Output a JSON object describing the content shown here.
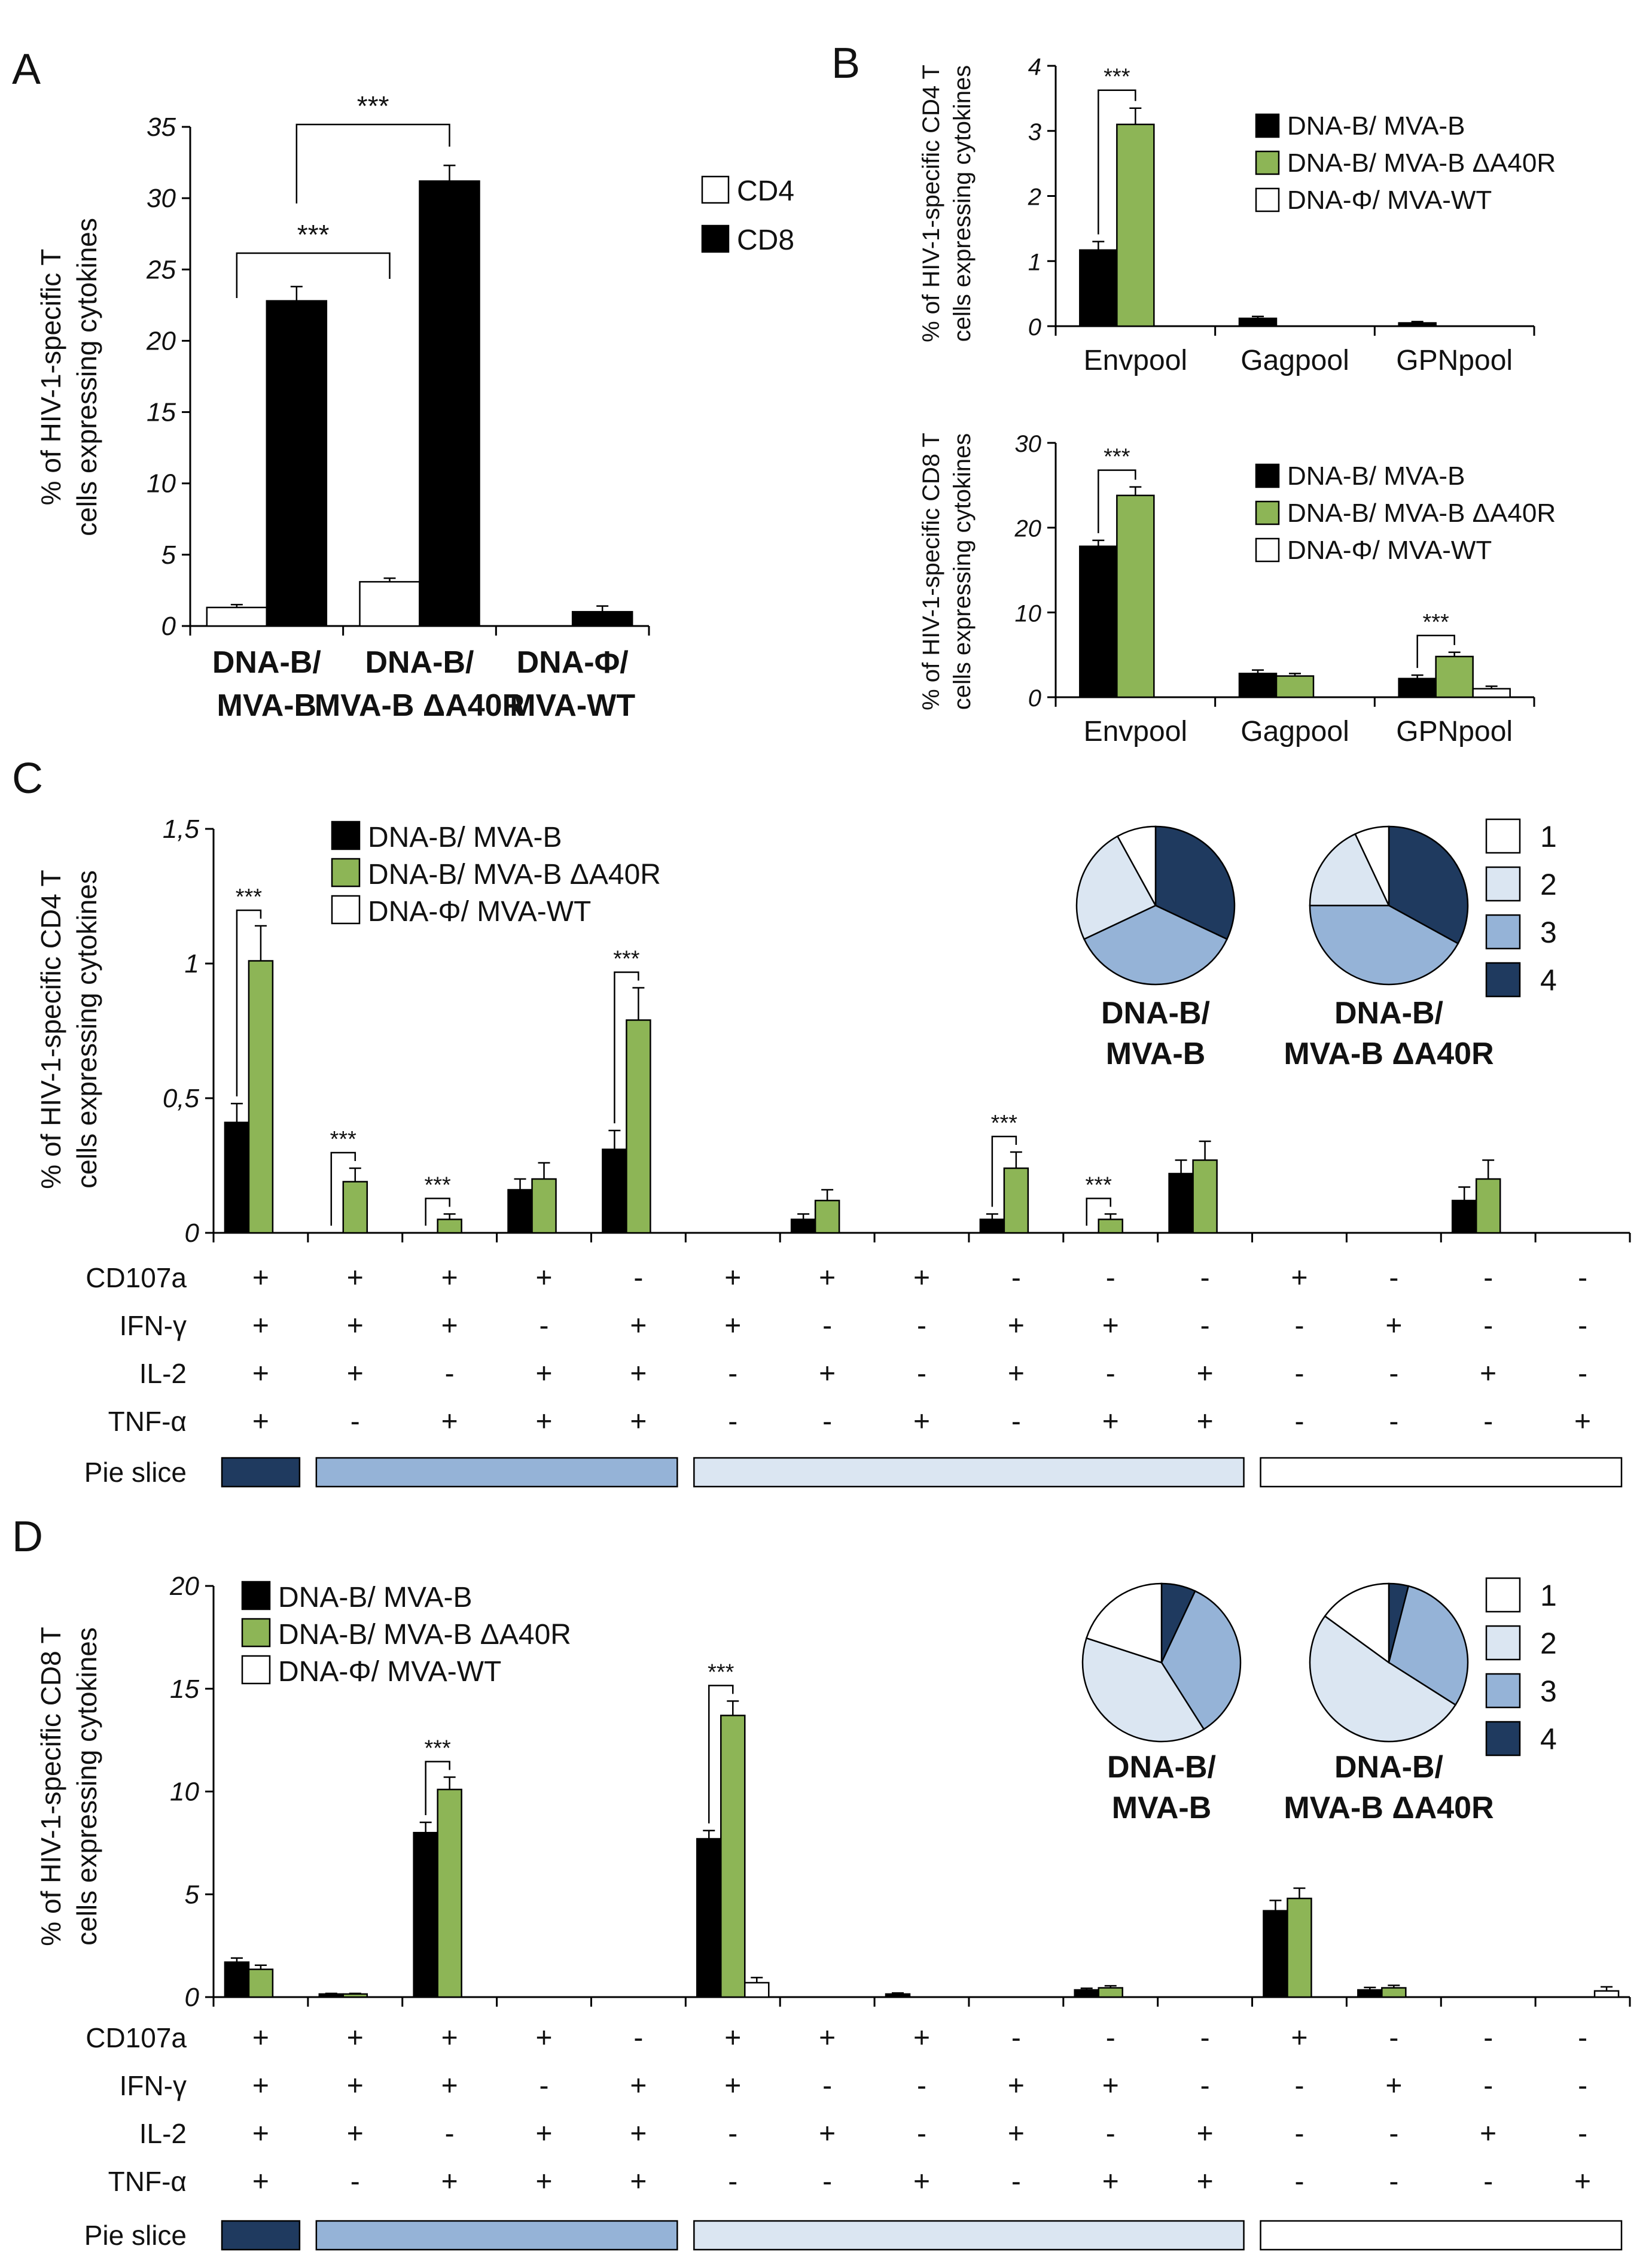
{
  "colors": {
    "black": "#000000",
    "green": "#8db556",
    "white": "#ffffff",
    "slice1": "#ffffff",
    "slice2": "#dbe6f2",
    "slice3": "#95b3d7",
    "slice4": "#1f3a5f"
  },
  "chart_data": [
    {
      "id": "A",
      "type": "bar",
      "panel_label": "A",
      "ylabel": [
        "% of HIV-1-specific T",
        "cells expressing cytokines"
      ],
      "ylim": [
        0,
        35
      ],
      "yticks": [
        "0",
        "5",
        "10",
        "15",
        "20",
        "25",
        "30",
        "35"
      ],
      "categories": [
        [
          "DNA-B/",
          "MVA-B"
        ],
        [
          "DNA-B/",
          "MVA-B ΔA40R"
        ],
        [
          "DNA-Φ/",
          "MVA-WT"
        ]
      ],
      "series": [
        {
          "name": "CD4",
          "color": "#ffffff",
          "values": [
            1.3,
            3.1,
            0
          ],
          "errors": [
            0.2,
            0.25,
            0
          ]
        },
        {
          "name": "CD8",
          "color": "#000000",
          "values": [
            22.8,
            31.2,
            1.0
          ],
          "errors": [
            1.0,
            1.1,
            0.4
          ]
        }
      ],
      "legend": [
        "CD4",
        "CD8"
      ],
      "significance": [
        {
          "label": "***",
          "from": [
            0,
            0
          ],
          "to": [
            1,
            0
          ]
        },
        {
          "label": "***",
          "from": [
            0,
            1
          ],
          "to": [
            1,
            1
          ]
        }
      ]
    },
    {
      "id": "B1",
      "type": "bar",
      "panel_label": "B",
      "ylabel": [
        "% of HIV-1-specific CD4 T",
        "cells expressing cytokines"
      ],
      "ylim": [
        0,
        4
      ],
      "yticks": [
        "0",
        "1",
        "2",
        "3",
        "4"
      ],
      "categories": [
        "Envpool",
        "Gagpool",
        "GPNpool"
      ],
      "series": [
        {
          "name": "DNA-B/ MVA-B",
          "color": "#000000",
          "values": [
            1.17,
            0.12,
            0.05
          ],
          "errors": [
            0.13,
            0.03,
            0.02
          ]
        },
        {
          "name": "DNA-B/ MVA-B ΔA40R",
          "color": "#8db556",
          "values": [
            3.1,
            0,
            0
          ],
          "errors": [
            0.25,
            0,
            0
          ]
        },
        {
          "name": "DNA-Φ/ MVA-WT",
          "color": "#ffffff",
          "values": [
            0,
            0,
            0
          ],
          "errors": [
            0,
            0,
            0
          ]
        }
      ],
      "legend": [
        "DNA-B/ MVA-B",
        "DNA-B/ MVA-B ΔA40R",
        "DNA-Φ/ MVA-WT"
      ],
      "significance": [
        {
          "label": "***",
          "cat": 0
        }
      ]
    },
    {
      "id": "B2",
      "type": "bar",
      "ylabel": [
        "% of HIV-1-specific CD8 T",
        "cells expressing cytokines"
      ],
      "ylim": [
        0,
        30
      ],
      "yticks": [
        "0",
        "10",
        "20",
        "30"
      ],
      "categories": [
        "Envpool",
        "Gagpool",
        "GPNpool"
      ],
      "series": [
        {
          "name": "DNA-B/ MVA-B",
          "color": "#000000",
          "values": [
            17.8,
            2.8,
            2.2
          ],
          "errors": [
            0.7,
            0.4,
            0.4
          ]
        },
        {
          "name": "DNA-B/ MVA-B ΔA40R",
          "color": "#8db556",
          "values": [
            23.8,
            2.5,
            4.8
          ],
          "errors": [
            1.0,
            0.3,
            0.5
          ]
        },
        {
          "name": "DNA-Φ/ MVA-WT",
          "color": "#ffffff",
          "values": [
            0,
            0,
            1.0
          ],
          "errors": [
            0,
            0,
            0.3
          ]
        }
      ],
      "legend": [
        "DNA-B/ MVA-B",
        "DNA-B/ MVA-B ΔA40R",
        "DNA-Φ/ MVA-WT"
      ],
      "significance": [
        {
          "label": "***",
          "cat": 0
        },
        {
          "label": "***",
          "cat": 2
        }
      ]
    },
    {
      "id": "C",
      "type": "bar",
      "panel_label": "C",
      "ylabel": [
        "% of HIV-1-specific CD4 T",
        "cells expressing cytokines"
      ],
      "ylim": [
        0,
        1.5
      ],
      "yticks": [
        "0",
        "0,5",
        "1",
        "1,5"
      ],
      "series": [
        {
          "name": "DNA-B/ MVA-B",
          "color": "#000000",
          "values": [
            0.41,
            0,
            0,
            0.16,
            0.31,
            0,
            0.05,
            0,
            0.05,
            0,
            0.22,
            0,
            0,
            0.12,
            0
          ],
          "errors": [
            0.07,
            0,
            0,
            0.04,
            0.07,
            0,
            0.02,
            0,
            0.02,
            0,
            0.05,
            0,
            0,
            0.05,
            0
          ]
        },
        {
          "name": "DNA-B/ MVA-B ΔA40R",
          "color": "#8db556",
          "values": [
            1.01,
            0.19,
            0.05,
            0.2,
            0.79,
            0,
            0.12,
            0,
            0.24,
            0.05,
            0.27,
            0,
            0,
            0.2,
            0
          ],
          "errors": [
            0.13,
            0.05,
            0.02,
            0.06,
            0.12,
            0,
            0.04,
            0,
            0.06,
            0.02,
            0.07,
            0,
            0,
            0.07,
            0
          ]
        },
        {
          "name": "DNA-Φ/ MVA-WT",
          "color": "#ffffff",
          "values": [
            0,
            0,
            0,
            0,
            0,
            0,
            0,
            0,
            0,
            0,
            0,
            0,
            0,
            0,
            0
          ],
          "errors": [
            0,
            0,
            0,
            0,
            0,
            0,
            0,
            0,
            0,
            0,
            0,
            0,
            0,
            0,
            0
          ]
        }
      ],
      "legend": [
        "DNA-B/ MVA-B",
        "DNA-B/ MVA-B ΔA40R",
        "DNA-Φ/ MVA-WT"
      ],
      "significance": [
        {
          "label": "***",
          "cat": 0
        },
        {
          "label": "***",
          "cat": 1
        },
        {
          "label": "***",
          "cat": 2
        },
        {
          "label": "***",
          "cat": 4
        },
        {
          "label": "***",
          "cat": 8
        },
        {
          "label": "***",
          "cat": 9
        }
      ],
      "pies": [
        {
          "label": [
            "DNA-B/",
            "MVA-B"
          ],
          "fractions": {
            "4": 0.32,
            "3": 0.36,
            "2": 0.24,
            "1": 0.08
          }
        },
        {
          "label": [
            "DNA-B/",
            "MVA-B ΔA40R"
          ],
          "fractions": {
            "4": 0.33,
            "3": 0.42,
            "2": 0.18,
            "1": 0.07
          }
        }
      ]
    },
    {
      "id": "D",
      "type": "bar",
      "panel_label": "D",
      "ylabel": [
        "% of HIV-1-specific CD8 T",
        "cells expressing cytokines"
      ],
      "ylim": [
        0,
        20
      ],
      "yticks": [
        "0",
        "5",
        "10",
        "15",
        "20"
      ],
      "series": [
        {
          "name": "DNA-B/ MVA-B",
          "color": "#000000",
          "values": [
            1.7,
            0.15,
            8.0,
            0,
            0,
            7.7,
            0,
            0.15,
            0,
            0.35,
            0,
            4.2,
            0.35,
            0,
            0
          ],
          "errors": [
            0.2,
            0.03,
            0.5,
            0,
            0,
            0.4,
            0,
            0.05,
            0,
            0.08,
            0,
            0.5,
            0.12,
            0,
            0
          ]
        },
        {
          "name": "DNA-B/ MVA-B ΔA40R",
          "color": "#8db556",
          "values": [
            1.35,
            0.15,
            10.1,
            0,
            0,
            13.7,
            0,
            0,
            0,
            0.45,
            0,
            4.8,
            0.45,
            0,
            0
          ],
          "errors": [
            0.2,
            0.03,
            0.6,
            0,
            0,
            0.7,
            0,
            0,
            0,
            0.1,
            0,
            0.5,
            0.12,
            0,
            0
          ]
        },
        {
          "name": "DNA-Φ/ MVA-WT",
          "color": "#ffffff",
          "values": [
            0,
            0,
            0,
            0,
            0,
            0.7,
            0,
            0,
            0,
            0,
            0,
            0,
            0,
            0,
            0.3
          ],
          "errors": [
            0,
            0,
            0,
            0,
            0,
            0.25,
            0,
            0,
            0,
            0,
            0,
            0,
            0,
            0,
            0.2
          ]
        }
      ],
      "legend": [
        "DNA-B/ MVA-B",
        "DNA-B/ MVA-B ΔA40R",
        "DNA-Φ/ MVA-WT"
      ],
      "significance": [
        {
          "label": "***",
          "cat": 2
        },
        {
          "label": "***",
          "cat": 5
        }
      ],
      "pies": [
        {
          "label": [
            "DNA-B/",
            "MVA-B"
          ],
          "fractions": {
            "4": 0.07,
            "3": 0.34,
            "2": 0.39,
            "1": 0.2
          }
        },
        {
          "label": [
            "DNA-B/",
            "MVA-B ΔA40R"
          ],
          "fractions": {
            "4": 0.04,
            "3": 0.3,
            "2": 0.51,
            "1": 0.15
          }
        }
      ]
    }
  ],
  "cytokine_table": {
    "rows": [
      "CD107a",
      "IFN-γ",
      "IL-2",
      "TNF-α"
    ],
    "pie_row_label": "Pie slice",
    "values": [
      [
        "+",
        "+",
        "+",
        "+",
        "-",
        "+",
        "+",
        "+",
        "-",
        "-",
        "-",
        "+",
        "-",
        "-",
        "-"
      ],
      [
        "+",
        "+",
        "+",
        "-",
        "+",
        "+",
        "-",
        "-",
        "+",
        "+",
        "-",
        "-",
        "+",
        "-",
        "-"
      ],
      [
        "+",
        "+",
        "-",
        "+",
        "+",
        "-",
        "+",
        "-",
        "+",
        "-",
        "+",
        "-",
        "-",
        "+",
        "-"
      ],
      [
        "+",
        "-",
        "+",
        "+",
        "+",
        "-",
        "-",
        "+",
        "-",
        "+",
        "+",
        "-",
        "-",
        "-",
        "+"
      ]
    ],
    "pie_groups": [
      {
        "slice": "4",
        "from": 0,
        "to": 0
      },
      {
        "slice": "3",
        "from": 1,
        "to": 4
      },
      {
        "slice": "2",
        "from": 5,
        "to": 10
      },
      {
        "slice": "1",
        "from": 11,
        "to": 14
      }
    ]
  },
  "pie_legend": [
    "1",
    "2",
    "3",
    "4"
  ]
}
